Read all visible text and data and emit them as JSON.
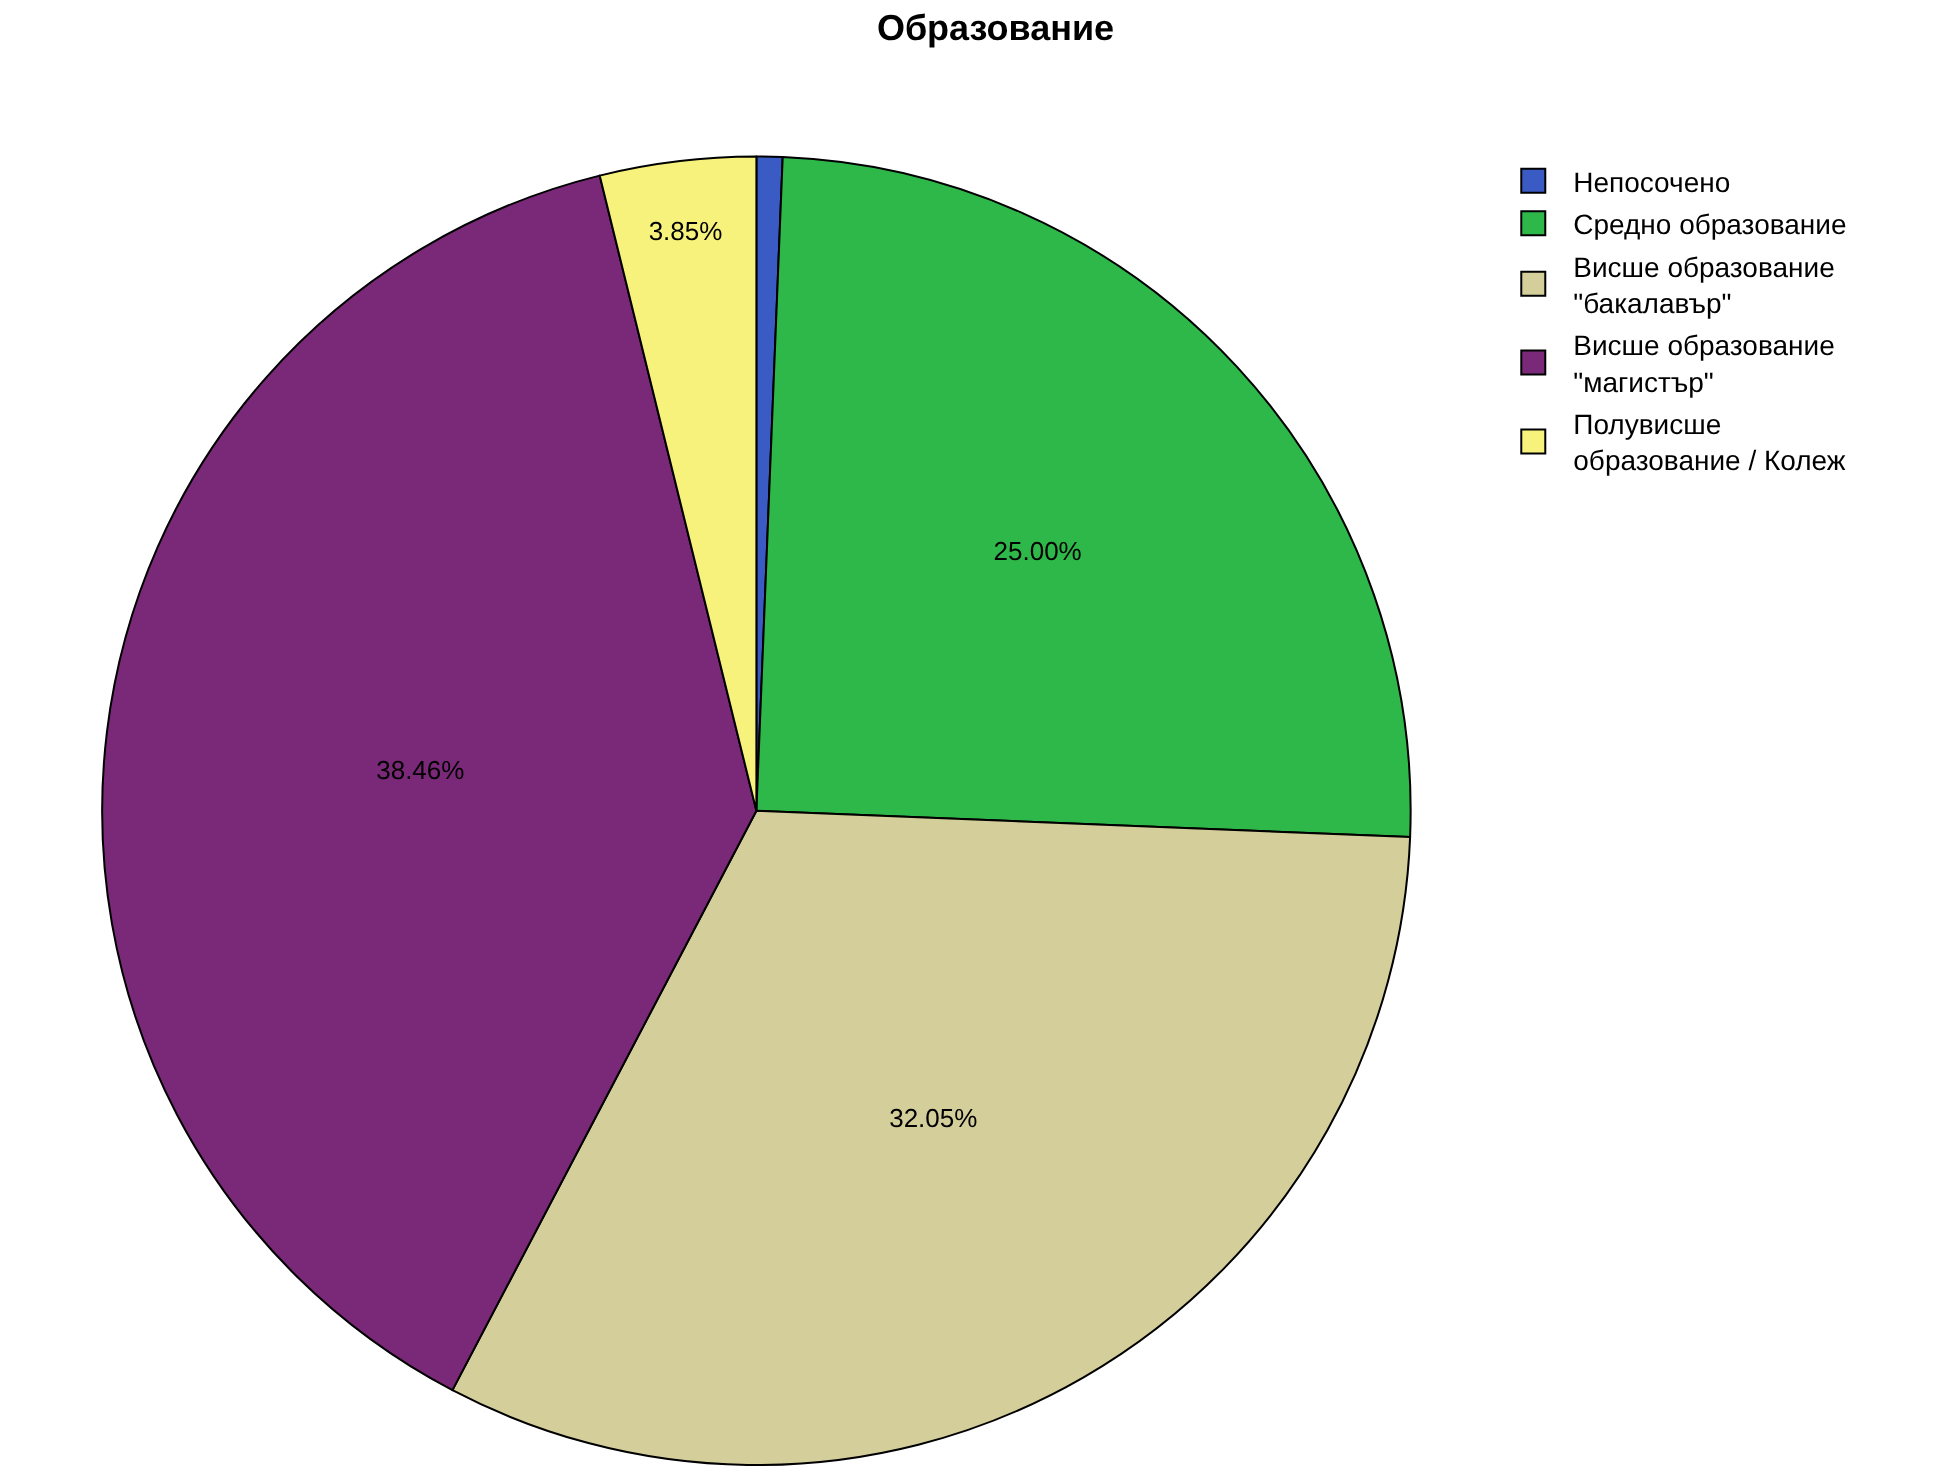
{
  "chart_data": {
    "type": "pie",
    "title": "Образование",
    "categories": [
      "Непосочено",
      "Средно образование",
      "Висше образование \"бакалавър\"",
      "Висше образование \"магистър\"",
      "Полувисше образование / Колеж"
    ],
    "values": [
      0.64,
      25.0,
      32.05,
      38.46,
      3.85
    ],
    "colors": [
      "#3b5bc4",
      "#2fb84a",
      "#d4ce9b",
      "#7a2878",
      "#f7f27c"
    ],
    "value_labels": [
      null,
      "25.00%",
      "32.05%",
      "38.46%",
      "3.85%"
    ],
    "legend": "top right"
  }
}
